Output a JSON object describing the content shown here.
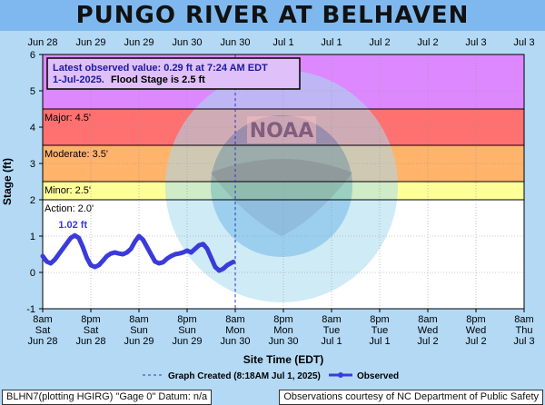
{
  "page": {
    "title": "PUNGO RIVER AT BELHAVEN"
  },
  "chart_data": {
    "type": "line",
    "title": "PUNGO RIVER AT BELHAVEN",
    "xlabel": "Site Time (EDT)",
    "ylabel": "Stage (ft)",
    "ylim": [
      -1,
      6
    ],
    "yticks": [
      -1,
      0,
      1,
      2,
      3,
      4,
      5,
      6
    ],
    "xlim_hours": [
      0,
      120
    ],
    "top_ticks": [
      "Jun 28",
      "Jun 29",
      "Jun 29",
      "Jun 30",
      "Jun 30",
      "Jul 1",
      "Jul 1",
      "Jul 2",
      "Jul 2",
      "Jul 3",
      "Jul 3"
    ],
    "bottom_ticks": [
      {
        "time": "8am",
        "day": "Sat",
        "date": "Jun 28"
      },
      {
        "time": "8pm",
        "day": "Sat",
        "date": "Jun 28"
      },
      {
        "time": "8am",
        "day": "Sun",
        "date": "Jun 29"
      },
      {
        "time": "8pm",
        "day": "Sun",
        "date": "Jun 29"
      },
      {
        "time": "8am",
        "day": "Mon",
        "date": "Jun 30"
      },
      {
        "time": "8pm",
        "day": "Mon",
        "date": "Jun 30"
      },
      {
        "time": "8am",
        "day": "Tue",
        "date": "Jul 1"
      },
      {
        "time": "8pm",
        "day": "Tue",
        "date": "Jul 1"
      },
      {
        "time": "8am",
        "day": "Wed",
        "date": "Jul 2"
      },
      {
        "time": "8pm",
        "day": "Wed",
        "date": "Jul 2"
      },
      {
        "time": "8am",
        "day": "Thu",
        "date": "Jul 3"
      }
    ],
    "bands": [
      {
        "label": "",
        "from": 4.5,
        "to": 6,
        "color": "#dd88ff"
      },
      {
        "label": "Major: 4.5'",
        "from": 3.5,
        "to": 4.5,
        "color": "#ff7070"
      },
      {
        "label": "Moderate: 3.5'",
        "from": 2.5,
        "to": 3.5,
        "color": "#ffb36b"
      },
      {
        "label": "Minor: 2.5'",
        "from": 2.0,
        "to": 2.5,
        "color": "#ffff99"
      },
      {
        "label": "Action: 2.0'",
        "from": -1,
        "to": 2.0,
        "color": "#ffffff"
      }
    ],
    "annotation": {
      "line1": "Latest observed value: 0.29 ft at 7:24 AM EDT",
      "line2_prefix": "1-Jul-2025.",
      "line2_bold": "Flood Stage is 2.5 ft"
    },
    "peak_label": "1.02 ft",
    "created_hour": 48,
    "legend": {
      "created": "Graph Created (8:18AM Jul 1, 2025)",
      "observed": "Observed"
    },
    "series": [
      {
        "name": "Observed",
        "color": "#3b3bdb",
        "x_hours": [
          0,
          1,
          2,
          3,
          4,
          5,
          6,
          7,
          8,
          9,
          10,
          11,
          12,
          13,
          14,
          15,
          16,
          17,
          18,
          19,
          20,
          21,
          22,
          23,
          24,
          25,
          26,
          27,
          28,
          29,
          30,
          31,
          32,
          33,
          34,
          35,
          36,
          37,
          38,
          39,
          40,
          41,
          42,
          43,
          44,
          45,
          46,
          47,
          47.5
        ],
        "values": [
          0.45,
          0.3,
          0.25,
          0.35,
          0.5,
          0.65,
          0.8,
          0.95,
          1.02,
          0.95,
          0.7,
          0.4,
          0.2,
          0.15,
          0.2,
          0.32,
          0.45,
          0.52,
          0.55,
          0.52,
          0.5,
          0.55,
          0.65,
          0.85,
          1.0,
          0.9,
          0.7,
          0.5,
          0.3,
          0.25,
          0.28,
          0.38,
          0.45,
          0.5,
          0.52,
          0.55,
          0.6,
          0.55,
          0.65,
          0.75,
          0.78,
          0.65,
          0.4,
          0.15,
          0.05,
          0.1,
          0.2,
          0.26,
          0.29
        ]
      }
    ],
    "watermark": "NATIONAL OCEANIC AND ATMOSPHERIC ADMINISTRATION / U.S. DEPARTMENT OF COMMERCE / NOAA"
  },
  "footer": {
    "left": "BLHN7(plotting HGIRG) \"Gage 0\" Datum: n/a",
    "right": "Observations courtesy of NC Department of Public Safety"
  }
}
